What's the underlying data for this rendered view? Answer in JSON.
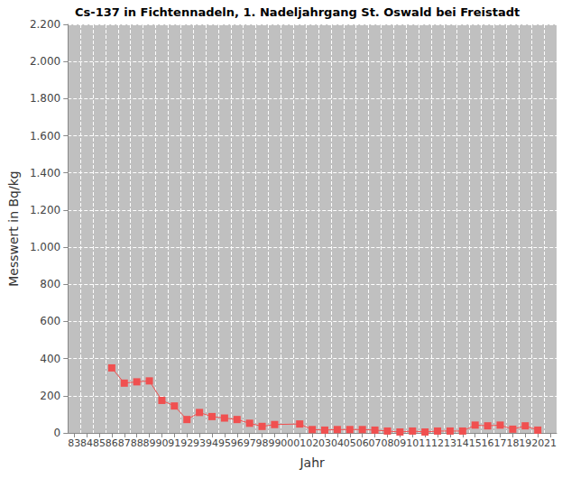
{
  "chart_data": {
    "type": "line",
    "title": "Cs-137 in Fichtennadeln, 1. Nadeljahrgang St. Oswald bei Freistadt",
    "x_label": "Jahr",
    "y_label": "Messwert in Bq/kg",
    "categories": [
      "83",
      "84",
      "85",
      "86",
      "87",
      "88",
      "89",
      "90",
      "91",
      "92",
      "93",
      "94",
      "95",
      "96",
      "97",
      "98",
      "99",
      "00",
      "01",
      "02",
      "03",
      "04",
      "05",
      "06",
      "07",
      "08",
      "09",
      "10",
      "11",
      "12",
      "13",
      "14",
      "15",
      "16",
      "17",
      "18",
      "19",
      "20",
      "21"
    ],
    "series": [
      {
        "name": "Cs-137",
        "color": "#f05050",
        "marker": "square",
        "values": [
          null,
          null,
          null,
          350,
          268,
          275,
          280,
          175,
          145,
          72,
          110,
          88,
          80,
          72,
          52,
          35,
          45,
          null,
          48,
          18,
          15,
          18,
          18,
          18,
          15,
          10,
          5,
          10,
          5,
          10,
          10,
          10,
          42,
          38,
          42,
          20,
          38,
          15,
          null
        ]
      }
    ],
    "ylim": [
      0,
      2200
    ],
    "yticks": [
      0,
      200,
      400,
      600,
      800,
      {
        "value": 1000,
        "label": "1.000"
      },
      {
        "value": 1200,
        "label": "1.200"
      },
      {
        "value": 1400,
        "label": "1.400"
      },
      {
        "value": 1600,
        "label": "1.600"
      },
      {
        "value": 1800,
        "label": "1.800"
      },
      {
        "value": 2000,
        "label": "2.000"
      },
      {
        "value": 2200,
        "label": "2.200"
      }
    ],
    "grid": true
  }
}
